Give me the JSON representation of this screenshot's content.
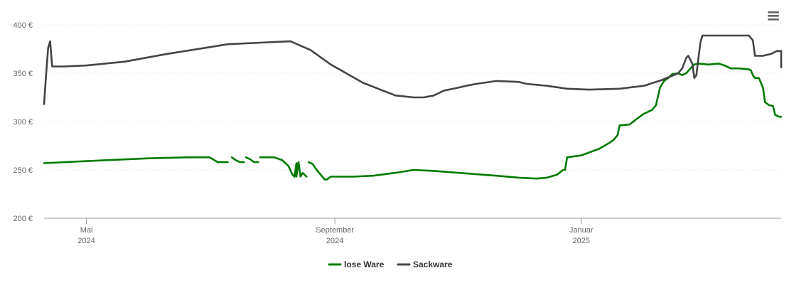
{
  "chart_data": {
    "type": "line",
    "ylim": [
      200,
      400
    ],
    "y_ticks": [
      {
        "value": 200,
        "label": "200 €"
      },
      {
        "value": 250,
        "label": "250 €"
      },
      {
        "value": 300,
        "label": "300 €"
      },
      {
        "value": 350,
        "label": "350 €"
      },
      {
        "value": 400,
        "label": "400 €"
      }
    ],
    "xlim": [
      "2024-04-10",
      "2025-04-10"
    ],
    "x_ticks": [
      {
        "date": "2024-05-01",
        "month": "Mai",
        "year": "2024"
      },
      {
        "date": "2024-09-01",
        "month": "September",
        "year": "2024"
      },
      {
        "date": "2025-01-01",
        "month": "Januar",
        "year": "2025"
      }
    ],
    "grid": true,
    "legend_position": "bottom-center",
    "series": [
      {
        "name": "lose Ware",
        "color": "#007a00",
        "segments": [
          [
            [
              "2024-04-10",
              257
            ],
            [
              "2024-05-10",
              260
            ],
            [
              "2024-06-01",
              262
            ],
            [
              "2024-06-20",
              263
            ],
            [
              "2024-07-01",
              263
            ],
            [
              "2024-07-05",
              258
            ],
            [
              "2024-07-10",
              258
            ]
          ],
          [
            [
              "2024-07-12",
              263
            ],
            [
              "2024-07-14",
              260
            ],
            [
              "2024-07-16",
              258
            ],
            [
              "2024-07-18",
              258
            ]
          ],
          [
            [
              "2024-07-19",
              263
            ],
            [
              "2024-07-21",
              261
            ],
            [
              "2024-07-23",
              258
            ],
            [
              "2024-07-25",
              258
            ]
          ],
          [
            [
              "2024-07-26",
              263
            ],
            [
              "2024-08-02",
              263
            ],
            [
              "2024-08-06",
              260
            ],
            [
              "2024-08-09",
              254
            ],
            [
              "2024-08-11",
              245
            ],
            [
              "2024-08-12",
              243
            ],
            [
              "2024-08-13",
              257
            ],
            [
              "2024-08-13",
              243
            ],
            [
              "2024-08-14",
              258
            ],
            [
              "2024-08-15",
              243
            ],
            [
              "2024-08-16",
              247
            ],
            [
              "2024-08-17",
              245
            ],
            [
              "2024-08-18",
              243
            ]
          ],
          [
            [
              "2024-08-19",
              258
            ],
            [
              "2024-08-21",
              256
            ],
            [
              "2024-08-23",
              250
            ],
            [
              "2024-08-25",
              245
            ],
            [
              "2024-08-27",
              240
            ],
            [
              "2024-08-28",
              240
            ],
            [
              "2024-08-30",
              243
            ],
            [
              "2024-09-10",
              243
            ],
            [
              "2024-09-20",
              244
            ],
            [
              "2024-10-01",
              247
            ],
            [
              "2024-10-10",
              250
            ],
            [
              "2024-10-20",
              249
            ],
            [
              "2024-11-01",
              247
            ],
            [
              "2024-11-20",
              244
            ],
            [
              "2024-12-01",
              242
            ],
            [
              "2024-12-10",
              241
            ],
            [
              "2024-12-15",
              242
            ],
            [
              "2024-12-20",
              245
            ],
            [
              "2024-12-23",
              250
            ],
            [
              "2024-12-24",
              250
            ],
            [
              "2024-12-25",
              263
            ],
            [
              "2025-01-01",
              265
            ],
            [
              "2025-01-10",
              272
            ],
            [
              "2025-01-15",
              278
            ],
            [
              "2025-01-17",
              281
            ],
            [
              "2025-01-19",
              286
            ],
            [
              "2025-01-20",
              296
            ],
            [
              "2025-01-25",
              297
            ],
            [
              "2025-01-28",
              302
            ],
            [
              "2025-02-01",
              308
            ],
            [
              "2025-02-05",
              312
            ],
            [
              "2025-02-07",
              317
            ],
            [
              "2025-02-09",
              335
            ],
            [
              "2025-02-11",
              342
            ],
            [
              "2025-02-13",
              345
            ],
            [
              "2025-02-15",
              349
            ],
            [
              "2025-02-18",
              350
            ],
            [
              "2025-02-20",
              348
            ],
            [
              "2025-02-22",
              350
            ],
            [
              "2025-02-24",
              355
            ],
            [
              "2025-02-26",
              359
            ],
            [
              "2025-02-28",
              360
            ],
            [
              "2025-03-05",
              359
            ],
            [
              "2025-03-10",
              360
            ],
            [
              "2025-03-13",
              358
            ],
            [
              "2025-03-16",
              355
            ],
            [
              "2025-03-20",
              355
            ],
            [
              "2025-03-25",
              354
            ],
            [
              "2025-03-26",
              353
            ],
            [
              "2025-03-27",
              348
            ],
            [
              "2025-03-28",
              345
            ],
            [
              "2025-03-30",
              345
            ],
            [
              "2025-04-01",
              335
            ],
            [
              "2025-04-02",
              320
            ],
            [
              "2025-04-04",
              317
            ],
            [
              "2025-04-06",
              316
            ],
            [
              "2025-04-07",
              307
            ],
            [
              "2025-04-08",
              306
            ],
            [
              "2025-04-09",
              305
            ],
            [
              "2025-04-10",
              305
            ]
          ]
        ]
      },
      {
        "name": "Sackware",
        "color": "#434348",
        "segments": [
          [
            [
              "2024-04-10",
              318
            ],
            [
              "2024-04-11",
              348
            ],
            [
              "2024-04-12",
              376
            ],
            [
              "2024-04-13",
              383
            ],
            [
              "2024-04-14",
              357
            ],
            [
              "2024-04-20",
              357
            ],
            [
              "2024-05-01",
              358
            ],
            [
              "2024-05-20",
              362
            ],
            [
              "2024-06-10",
              370
            ],
            [
              "2024-07-01",
              377
            ],
            [
              "2024-07-10",
              380
            ],
            [
              "2024-07-30",
              382
            ],
            [
              "2024-08-10",
              383
            ],
            [
              "2024-08-20",
              374
            ],
            [
              "2024-08-30",
              359
            ],
            [
              "2024-09-15",
              340
            ],
            [
              "2024-10-01",
              327
            ],
            [
              "2024-10-10",
              325
            ],
            [
              "2024-10-15",
              325
            ],
            [
              "2024-10-20",
              327
            ],
            [
              "2024-10-25",
              332
            ],
            [
              "2024-11-01",
              335
            ],
            [
              "2024-11-05",
              337
            ],
            [
              "2024-11-10",
              339
            ],
            [
              "2024-11-20",
              342
            ],
            [
              "2024-12-01",
              341
            ],
            [
              "2024-12-05",
              339
            ],
            [
              "2024-12-15",
              337
            ],
            [
              "2024-12-25",
              334
            ],
            [
              "2025-01-05",
              333
            ],
            [
              "2025-01-20",
              334
            ],
            [
              "2025-02-01",
              337
            ],
            [
              "2025-02-10",
              343
            ],
            [
              "2025-02-18",
              350
            ],
            [
              "2025-02-20",
              355
            ],
            [
              "2025-02-22",
              366
            ],
            [
              "2025-02-23",
              368
            ],
            [
              "2025-02-25",
              360
            ],
            [
              "2025-02-26",
              345
            ],
            [
              "2025-02-27",
              348
            ],
            [
              "2025-02-28",
              365
            ],
            [
              "2025-03-01",
              382
            ],
            [
              "2025-03-02",
              389
            ],
            [
              "2025-03-10",
              389
            ],
            [
              "2025-03-20",
              389
            ],
            [
              "2025-03-25",
              389
            ],
            [
              "2025-03-27",
              384
            ],
            [
              "2025-03-28",
              368
            ],
            [
              "2025-04-01",
              368
            ],
            [
              "2025-04-05",
              370
            ],
            [
              "2025-04-08",
              373
            ],
            [
              "2025-04-10",
              373
            ],
            [
              "2025-04-15",
              369
            ],
            [
              "2025-04-19",
              362
            ],
            [
              "2025-04-22",
              356
            ]
          ]
        ]
      }
    ]
  },
  "icons": {
    "menu": "hamburger-menu-icon"
  }
}
